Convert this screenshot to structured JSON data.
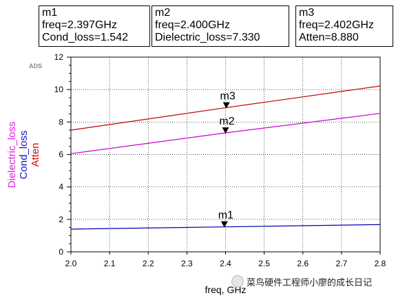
{
  "markers": [
    {
      "id": "m1",
      "label": "m1",
      "freq_text": "freq=2.397GHz",
      "value_text": "Cond_loss=1.542",
      "x": 2.397,
      "y": 1.542
    },
    {
      "id": "m2",
      "label": "m2",
      "freq_text": "freq=2.400GHz",
      "value_text": "Dielectric_loss=7.330",
      "x": 2.4,
      "y": 7.33
    },
    {
      "id": "m3",
      "label": "m3",
      "freq_text": "freq=2.402GHz",
      "value_text": "Atten=8.880",
      "x": 2.402,
      "y": 8.88
    }
  ],
  "chart_data": {
    "type": "line",
    "title": "",
    "logo": "ADS",
    "xlabel": "freq, GHz",
    "ylabels": [
      {
        "text": "Dielectric_loss",
        "color": "#e020e0"
      },
      {
        "text": "Cond_loss",
        "color": "#1010c0"
      },
      {
        "text": "Atten",
        "color": "#d01010"
      }
    ],
    "xlim": [
      2.0,
      2.8
    ],
    "ylim": [
      0,
      12
    ],
    "xticks": [
      "2.0",
      "2.1",
      "2.2",
      "2.3",
      "2.4",
      "2.5",
      "2.6",
      "2.7",
      "2.8"
    ],
    "yticks": [
      "0",
      "2",
      "4",
      "6",
      "8",
      "10",
      "12"
    ],
    "grid": true,
    "series": [
      {
        "name": "Atten",
        "color": "#c00000",
        "x": [
          2.0,
          2.4,
          2.8
        ],
        "y": [
          7.5,
          8.88,
          10.22
        ]
      },
      {
        "name": "Dielectric_loss",
        "color": "#cc00cc",
        "x": [
          2.0,
          2.4,
          2.8
        ],
        "y": [
          6.05,
          7.33,
          8.53
        ]
      },
      {
        "name": "Cond_loss",
        "color": "#0000b0",
        "x": [
          2.0,
          2.4,
          2.8
        ],
        "y": [
          1.4,
          1.54,
          1.68
        ]
      }
    ]
  },
  "watermark": {
    "text": "菜鸟硬件工程师小廖的成长日记"
  }
}
